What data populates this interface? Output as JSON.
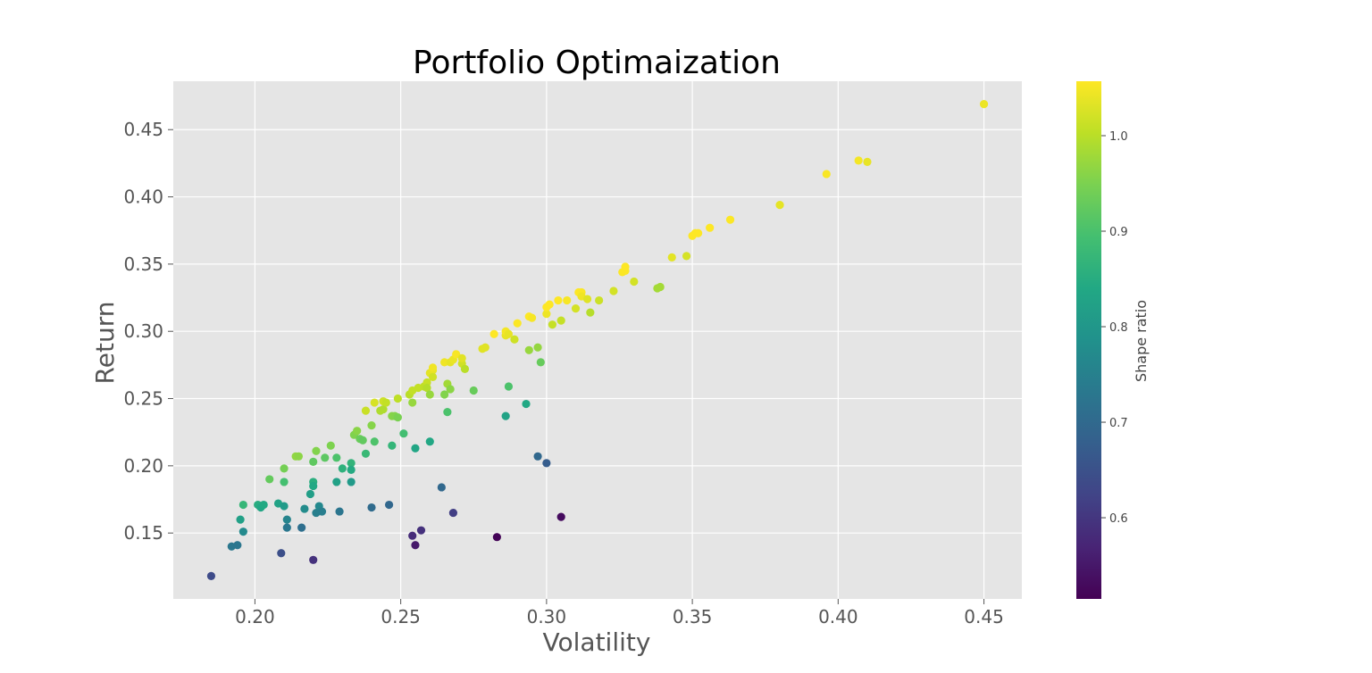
{
  "chart_data": {
    "type": "scatter",
    "title": "Portfolio Optimaization",
    "xlabel": "Volatility",
    "ylabel": "Return",
    "xlim": [
      0.172,
      0.463
    ],
    "ylim": [
      0.101,
      0.486
    ],
    "x_ticks": [
      0.2,
      0.25,
      0.3,
      0.35,
      0.4,
      0.45
    ],
    "x_tick_labels": [
      "0.20",
      "0.25",
      "0.30",
      "0.35",
      "0.40",
      "0.45"
    ],
    "y_ticks": [
      0.15,
      0.2,
      0.25,
      0.3,
      0.35,
      0.4,
      0.45
    ],
    "y_tick_labels": [
      "0.15",
      "0.20",
      "0.25",
      "0.30",
      "0.35",
      "0.40",
      "0.45"
    ],
    "grid": true,
    "colormap": "viridis",
    "colorbar": {
      "label": "Shape ratio",
      "range": [
        0.515,
        1.057
      ],
      "ticks": [
        0.6,
        0.7,
        0.8,
        0.9,
        1.0
      ],
      "tick_labels": [
        "0.6",
        "0.7",
        "0.8",
        "0.9",
        "1.0"
      ]
    },
    "colors": {
      "plot_background": "#e5e5e5",
      "grid": "#ffffff"
    },
    "points": [
      [
        0.185,
        0.118
      ],
      [
        0.192,
        0.14
      ],
      [
        0.194,
        0.141
      ],
      [
        0.195,
        0.16
      ],
      [
        0.196,
        0.171
      ],
      [
        0.196,
        0.151
      ],
      [
        0.201,
        0.171
      ],
      [
        0.202,
        0.169
      ],
      [
        0.203,
        0.171
      ],
      [
        0.205,
        0.19
      ],
      [
        0.208,
        0.172
      ],
      [
        0.209,
        0.135
      ],
      [
        0.21,
        0.17
      ],
      [
        0.21,
        0.198
      ],
      [
        0.21,
        0.188
      ],
      [
        0.211,
        0.16
      ],
      [
        0.211,
        0.154
      ],
      [
        0.214,
        0.207
      ],
      [
        0.215,
        0.207
      ],
      [
        0.216,
        0.154
      ],
      [
        0.217,
        0.168
      ],
      [
        0.219,
        0.179
      ],
      [
        0.22,
        0.203
      ],
      [
        0.22,
        0.188
      ],
      [
        0.22,
        0.185
      ],
      [
        0.22,
        0.13
      ],
      [
        0.221,
        0.211
      ],
      [
        0.221,
        0.165
      ],
      [
        0.222,
        0.17
      ],
      [
        0.223,
        0.166
      ],
      [
        0.224,
        0.206
      ],
      [
        0.226,
        0.215
      ],
      [
        0.228,
        0.206
      ],
      [
        0.228,
        0.188
      ],
      [
        0.229,
        0.166
      ],
      [
        0.23,
        0.198
      ],
      [
        0.233,
        0.202
      ],
      [
        0.233,
        0.197
      ],
      [
        0.233,
        0.188
      ],
      [
        0.234,
        0.223
      ],
      [
        0.235,
        0.226
      ],
      [
        0.236,
        0.22
      ],
      [
        0.237,
        0.219
      ],
      [
        0.238,
        0.241
      ],
      [
        0.238,
        0.209
      ],
      [
        0.24,
        0.169
      ],
      [
        0.24,
        0.23
      ],
      [
        0.241,
        0.218
      ],
      [
        0.241,
        0.247
      ],
      [
        0.243,
        0.241
      ],
      [
        0.244,
        0.248
      ],
      [
        0.244,
        0.242
      ],
      [
        0.245,
        0.247
      ],
      [
        0.246,
        0.171
      ],
      [
        0.247,
        0.215
      ],
      [
        0.247,
        0.237
      ],
      [
        0.248,
        0.237
      ],
      [
        0.249,
        0.236
      ],
      [
        0.249,
        0.25
      ],
      [
        0.251,
        0.224
      ],
      [
        0.253,
        0.253
      ],
      [
        0.254,
        0.256
      ],
      [
        0.254,
        0.148
      ],
      [
        0.254,
        0.247
      ],
      [
        0.255,
        0.213
      ],
      [
        0.255,
        0.141
      ],
      [
        0.256,
        0.258
      ],
      [
        0.257,
        0.152
      ],
      [
        0.258,
        0.259
      ],
      [
        0.259,
        0.262
      ],
      [
        0.259,
        0.258
      ],
      [
        0.26,
        0.253
      ],
      [
        0.26,
        0.269
      ],
      [
        0.26,
        0.218
      ],
      [
        0.261,
        0.271
      ],
      [
        0.261,
        0.266
      ],
      [
        0.261,
        0.273
      ],
      [
        0.264,
        0.184
      ],
      [
        0.265,
        0.253
      ],
      [
        0.265,
        0.277
      ],
      [
        0.266,
        0.261
      ],
      [
        0.266,
        0.24
      ],
      [
        0.267,
        0.257
      ],
      [
        0.267,
        0.277
      ],
      [
        0.268,
        0.165
      ],
      [
        0.268,
        0.279
      ],
      [
        0.269,
        0.283
      ],
      [
        0.271,
        0.276
      ],
      [
        0.271,
        0.28
      ],
      [
        0.272,
        0.272
      ],
      [
        0.275,
        0.256
      ],
      [
        0.278,
        0.287
      ],
      [
        0.279,
        0.288
      ],
      [
        0.282,
        0.298
      ],
      [
        0.283,
        0.147
      ],
      [
        0.286,
        0.297
      ],
      [
        0.286,
        0.3
      ],
      [
        0.286,
        0.237
      ],
      [
        0.287,
        0.298
      ],
      [
        0.287,
        0.259
      ],
      [
        0.289,
        0.294
      ],
      [
        0.29,
        0.306
      ],
      [
        0.293,
        0.246
      ],
      [
        0.294,
        0.311
      ],
      [
        0.294,
        0.286
      ],
      [
        0.295,
        0.31
      ],
      [
        0.297,
        0.207
      ],
      [
        0.297,
        0.288
      ],
      [
        0.298,
        0.277
      ],
      [
        0.3,
        0.202
      ],
      [
        0.3,
        0.313
      ],
      [
        0.3,
        0.318
      ],
      [
        0.301,
        0.32
      ],
      [
        0.302,
        0.305
      ],
      [
        0.304,
        0.323
      ],
      [
        0.305,
        0.308
      ],
      [
        0.305,
        0.162
      ],
      [
        0.307,
        0.323
      ],
      [
        0.31,
        0.317
      ],
      [
        0.311,
        0.329
      ],
      [
        0.312,
        0.329
      ],
      [
        0.312,
        0.326
      ],
      [
        0.314,
        0.324
      ],
      [
        0.315,
        0.314
      ],
      [
        0.318,
        0.323
      ],
      [
        0.323,
        0.33
      ],
      [
        0.326,
        0.344
      ],
      [
        0.327,
        0.345
      ],
      [
        0.327,
        0.348
      ],
      [
        0.33,
        0.337
      ],
      [
        0.338,
        0.332
      ],
      [
        0.339,
        0.333
      ],
      [
        0.343,
        0.355
      ],
      [
        0.348,
        0.356
      ],
      [
        0.35,
        0.371
      ],
      [
        0.351,
        0.373
      ],
      [
        0.352,
        0.373
      ],
      [
        0.356,
        0.377
      ],
      [
        0.363,
        0.383
      ],
      [
        0.38,
        0.394
      ],
      [
        0.396,
        0.417
      ],
      [
        0.407,
        0.427
      ],
      [
        0.41,
        0.426
      ],
      [
        0.45,
        0.469
      ]
    ]
  }
}
